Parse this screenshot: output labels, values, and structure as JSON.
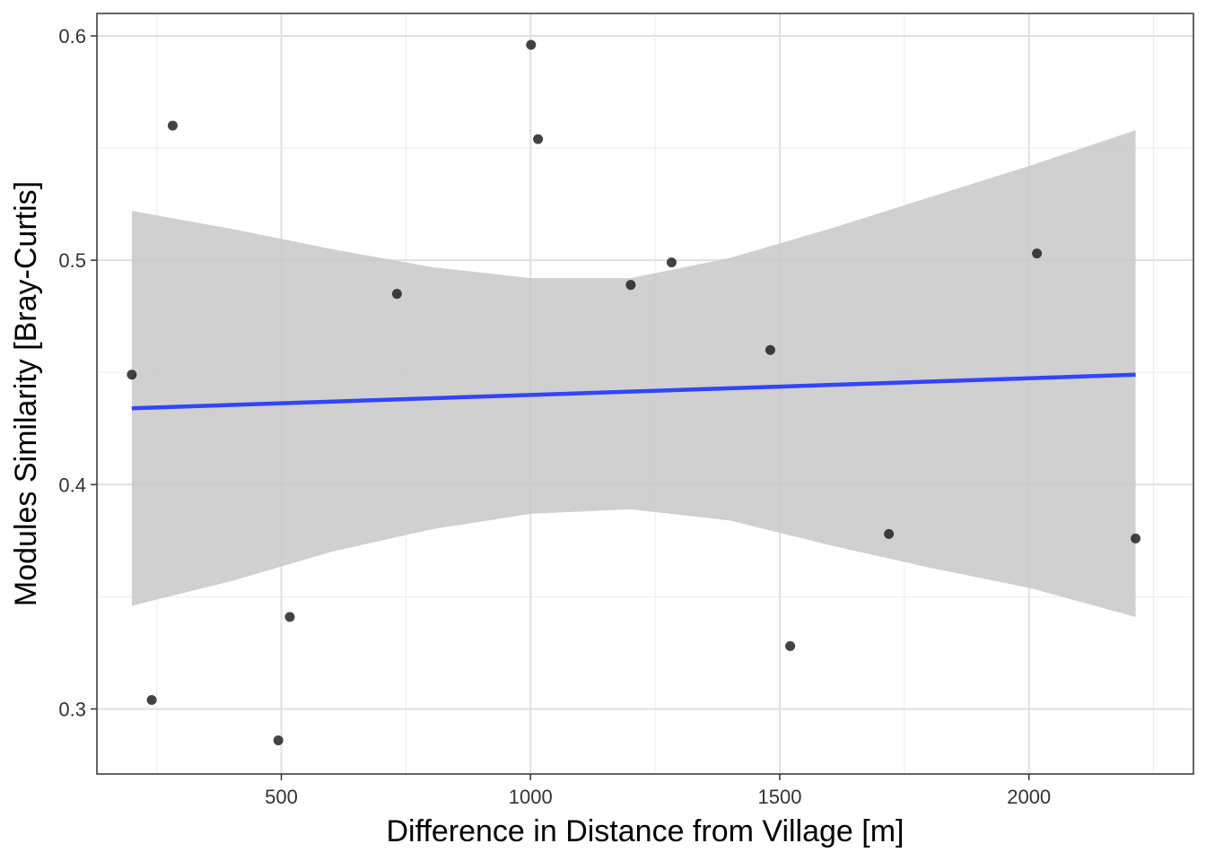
{
  "chart_data": {
    "type": "scatter",
    "title": "",
    "xlabel": "Difference in Distance from Village [m]",
    "ylabel": "Modules Similarity [Bray-Curtis]",
    "xlim": [
      130,
      2330
    ],
    "ylim": [
      0.271,
      0.61
    ],
    "x_ticks": [
      500,
      1000,
      1500,
      2000
    ],
    "x_tick_labels": [
      "500",
      "1000",
      "1500",
      "2000"
    ],
    "x_minor_ticks": [
      250,
      750,
      1250,
      1750,
      2250
    ],
    "y_ticks": [
      0.3,
      0.4,
      0.5,
      0.6
    ],
    "y_tick_labels": [
      "0.3",
      "0.4",
      "0.5",
      "0.6"
    ],
    "y_minor_ticks": [
      0.35,
      0.45,
      0.55
    ],
    "grid": true,
    "points": [
      {
        "x": 200,
        "y": 0.449
      },
      {
        "x": 240,
        "y": 0.304
      },
      {
        "x": 282,
        "y": 0.56
      },
      {
        "x": 494,
        "y": 0.286
      },
      {
        "x": 517,
        "y": 0.341
      },
      {
        "x": 732,
        "y": 0.485
      },
      {
        "x": 1001,
        "y": 0.596
      },
      {
        "x": 1015,
        "y": 0.554
      },
      {
        "x": 1201,
        "y": 0.489
      },
      {
        "x": 1283,
        "y": 0.499
      },
      {
        "x": 1481,
        "y": 0.46
      },
      {
        "x": 1521,
        "y": 0.328
      },
      {
        "x": 1719,
        "y": 0.378
      },
      {
        "x": 2016,
        "y": 0.503
      },
      {
        "x": 2214,
        "y": 0.376
      }
    ],
    "trend_line": {
      "method": "linear",
      "x": [
        200,
        2214
      ],
      "y": [
        0.434,
        0.449
      ],
      "color": "#3344ff"
    },
    "confidence_band": {
      "x": [
        200,
        400,
        600,
        800,
        1000,
        1200,
        1400,
        1600,
        1800,
        2000,
        2214
      ],
      "upper": [
        0.522,
        0.514,
        0.505,
        0.497,
        0.492,
        0.492,
        0.501,
        0.514,
        0.528,
        0.542,
        0.558
      ],
      "lower": [
        0.346,
        0.357,
        0.37,
        0.38,
        0.387,
        0.389,
        0.384,
        0.373,
        0.363,
        0.354,
        0.341
      ],
      "color": "#bdbdbd"
    },
    "colors": {
      "point": "#1a1a1a",
      "trend": "#3344ff",
      "band": "#c8c8c8",
      "grid_major": "#e0e0e0",
      "grid_minor": "#efefef",
      "panel_border": "#333333"
    }
  }
}
